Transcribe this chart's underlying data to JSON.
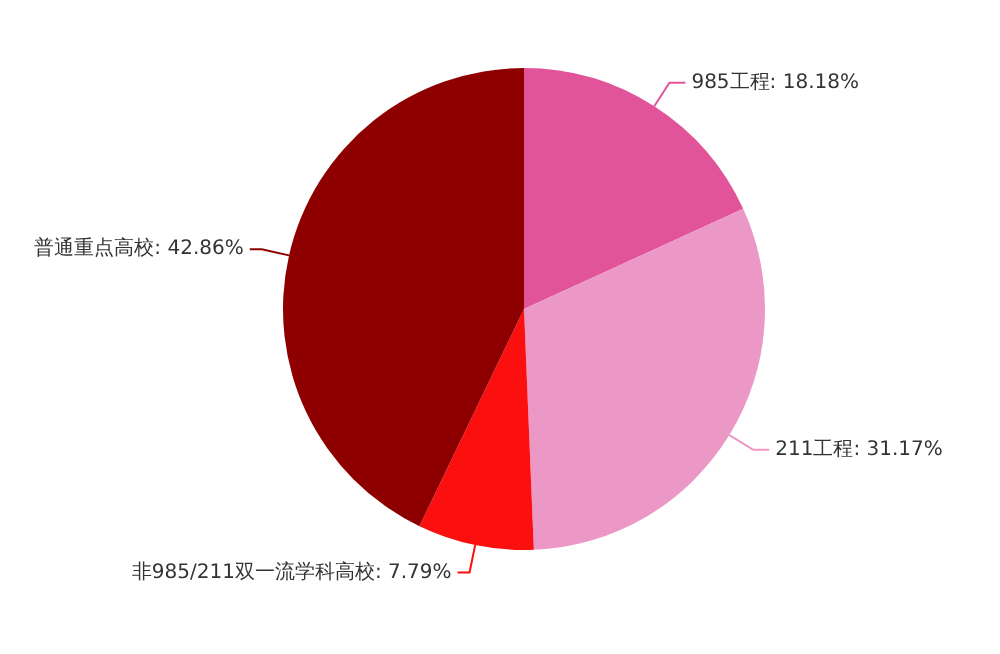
{
  "chart_data": {
    "type": "pie",
    "categories": [
      "985工程",
      "211工程",
      "非985/211双一流学科高校",
      "普通重点高校"
    ],
    "values": [
      18.18,
      31.17,
      7.79,
      42.86
    ],
    "value_labels": [
      "18.18%",
      "31.17%",
      "7.79%",
      "42.86%"
    ],
    "colors": [
      "#e2549a",
      "#ec98c6",
      "#fb0f0f",
      "#8e0000"
    ]
  }
}
